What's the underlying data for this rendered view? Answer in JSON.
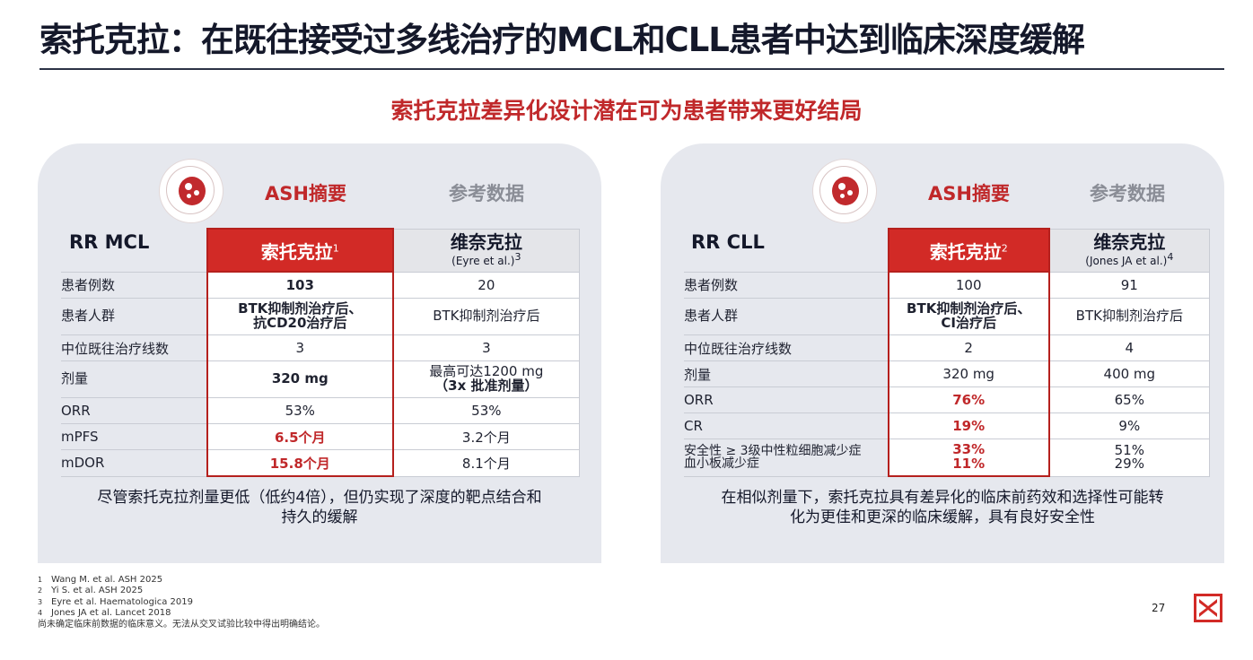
{
  "title": "索托克拉：在既往接受过多线治疗的MCL和CLL患者中达到临床深度缓解",
  "subtitle": "索托克拉差异化设计潜在可为患者带来更好结局",
  "panels": [
    {
      "ash_header": "ASH摘要",
      "ref_header": "参考数据",
      "dataset_label": "RR MCL",
      "col1_name": "索托克拉",
      "col1_sup": "1",
      "col2_name": "维奈克拉",
      "col2_cite": "(Eyre et al.)",
      "col2_sup": "3",
      "rows": [
        {
          "label": "患者例数",
          "v1": "103",
          "v2": "20"
        },
        {
          "label": "患者人群",
          "v1a": "BTK抑制剂治疗后、",
          "v1b": "抗CD20治疗后",
          "v2": "BTK抑制剂治疗后"
        },
        {
          "label": "中位既往治疗线数",
          "v1": "3",
          "v2": "3"
        },
        {
          "label": "剂量",
          "v1": "320 mg",
          "v2a": "最高可达1200 mg",
          "v2b": "（3x 批准剂量）"
        },
        {
          "label": "ORR",
          "v1": "53%",
          "v2": "53%"
        },
        {
          "label": "mPFS",
          "v1": "6.5个月",
          "v2": "3.2个月"
        },
        {
          "label": "mDOR",
          "v1": "15.8个月",
          "v2": "8.1个月"
        }
      ],
      "caption_line1": "尽管索托克拉剂量更低（低约4倍），但仍实现了深度的靶点结合和",
      "caption_line2": "持久的缓解"
    },
    {
      "ash_header": "ASH摘要",
      "ref_header": "参考数据",
      "dataset_label": "RR CLL",
      "col1_name": "索托克拉",
      "col1_sup": "2",
      "col2_name": "维奈克拉",
      "col2_cite": "(Jones JA et al.)",
      "col2_sup": "4",
      "rows": [
        {
          "label": "患者例数",
          "v1": "100",
          "v2": "91"
        },
        {
          "label": "患者人群",
          "v1a": "BTK抑制剂治疗后、",
          "v1b": "CI治疗后",
          "v2": "BTK抑制剂治疗后"
        },
        {
          "label": "中位既往治疗线数",
          "v1": "2",
          "v2": "4"
        },
        {
          "label": "剂量",
          "v1": "320 mg",
          "v2": "400 mg"
        },
        {
          "label": "ORR",
          "v1": "76%",
          "v2": "65%"
        },
        {
          "label": "CR",
          "v1": "19%",
          "v2": "9%"
        },
        {
          "label_a": "安全性 ≥ 3级中性粒细胞减少症",
          "label_b": "血小板减少症",
          "v1a": "33%",
          "v1b": "11%",
          "v2a": "51%",
          "v2b": "29%"
        }
      ],
      "caption_line1": "在相似剂量下，索托克拉具有差异化的临床前药效和选择性可能转",
      "caption_line2": "化为更佳和更深的临床缓解，具有良好安全性"
    }
  ],
  "footnotes": [
    {
      "n": "1",
      "text": "Wang M. et al. ASH 2025"
    },
    {
      "n": "2",
      "text": "Yi S. et al. ASH 2025"
    },
    {
      "n": "3",
      "text": "Eyre et al. Haematologica 2019"
    },
    {
      "n": "4",
      "text": "Jones JA et al. Lancet 2018"
    }
  ],
  "disclaimer": "尚未确定临床前数据的临床意义。无法从交叉试验比较中得出明确结论。",
  "page_number": "27",
  "colors": {
    "accent_red": "#d22a26",
    "panel_bg": "#e6e8ee",
    "title_dark": "#14182a"
  }
}
